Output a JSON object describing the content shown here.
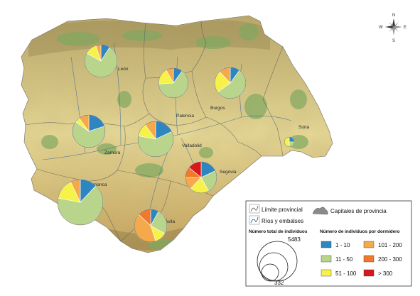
{
  "map": {
    "provinces": [
      "León",
      "Palencia",
      "Burgos",
      "Soria",
      "Zamora",
      "Valladolid",
      "Segovia",
      "Salamanca",
      "Ávila"
    ],
    "compass": {
      "n": "N",
      "s": "S",
      "e": "E",
      "w": "W"
    }
  },
  "classes": [
    {
      "label": "1 - 10",
      "color": "#2e86c1"
    },
    {
      "label": "11 - 50",
      "color": "#b9d58c"
    },
    {
      "label": "51 - 100",
      "color": "#f7f24a"
    },
    {
      "label": "101 - 200",
      "color": "#f5a94a"
    },
    {
      "label": "200 - 300",
      "color": "#ef7a2d"
    },
    {
      "label": "> 300",
      "color": "#d7191c"
    }
  ],
  "pies": [
    {
      "province": "León",
      "fractions": [
        0.09,
        0.74,
        0.12,
        0.05,
        0,
        0
      ]
    },
    {
      "province": "Palencia",
      "fractions": [
        0.1,
        0.64,
        0.18,
        0.08,
        0,
        0
      ]
    },
    {
      "province": "Burgos",
      "fractions": [
        0.1,
        0.55,
        0.23,
        0.12,
        0,
        0
      ]
    },
    {
      "province": "Soria",
      "fractions": [
        0.25,
        0.25,
        0.5,
        0,
        0,
        0
      ]
    },
    {
      "province": "Zamora",
      "fractions": [
        0.2,
        0.65,
        0.05,
        0.1,
        0,
        0
      ]
    },
    {
      "province": "Valladolid",
      "fractions": [
        0.18,
        0.6,
        0.12,
        0.1,
        0,
        0
      ]
    },
    {
      "province": "Segovia",
      "fractions": [
        0.18,
        0.24,
        0.2,
        0.13,
        0.11,
        0.14
      ]
    },
    {
      "province": "Salamanca",
      "fractions": [
        0.12,
        0.66,
        0.15,
        0.07,
        0,
        0
      ]
    },
    {
      "province": "Ávila",
      "fractions": [
        0.08,
        0.25,
        0.12,
        0.42,
        0.13,
        0
      ]
    }
  ],
  "legend": {
    "limite": "Límite provincial",
    "rios": "Ríos y embalses",
    "capitales": "Capitales de provincia",
    "total_title": "Número total de individuos",
    "total_max": "5483",
    "total_min": "332",
    "classes_title": "Número de individuos por dormidero"
  }
}
